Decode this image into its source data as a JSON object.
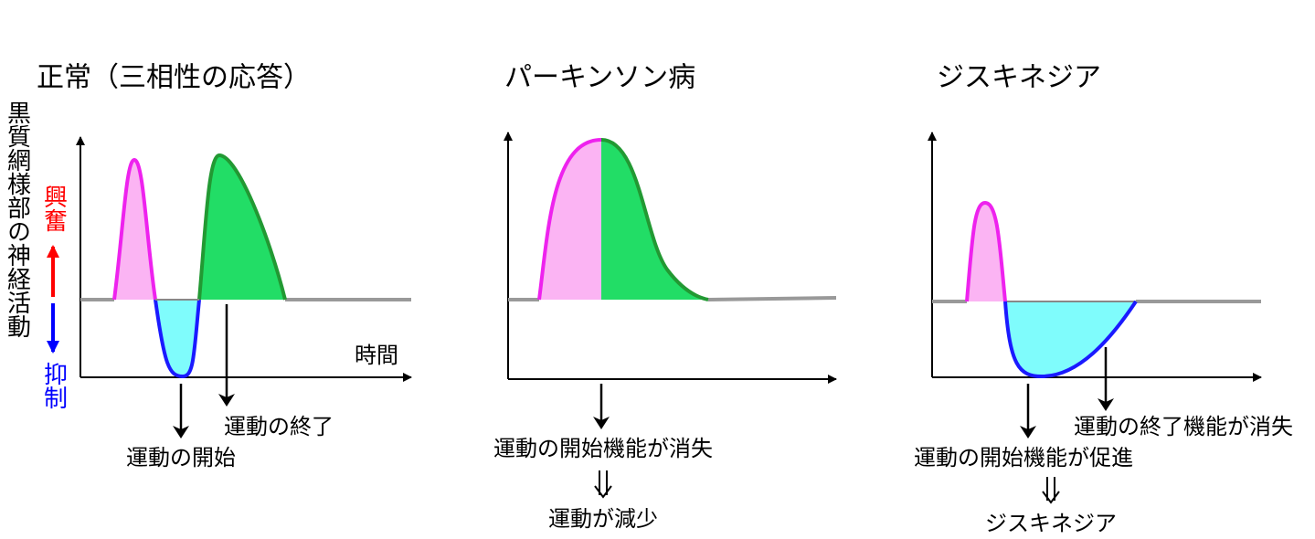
{
  "y_axis_label": "黒質網様部の神経活動",
  "excite_label": "興奮",
  "inhibit_label": "抑制",
  "x_axis_label": "時間",
  "panels": [
    {
      "title": "正常（三相性の応答）",
      "annotations": [
        "運動の終了",
        "運動の開始"
      ]
    },
    {
      "title": "パーキンソン病",
      "annotations": [
        "運動の開始機能が消失",
        "運動が減少"
      ]
    },
    {
      "title": "ジスキネジア",
      "annotations": [
        "運動の終了機能が消失",
        "運動の開始機能が促進",
        "ジスキネジア"
      ]
    }
  ]
}
